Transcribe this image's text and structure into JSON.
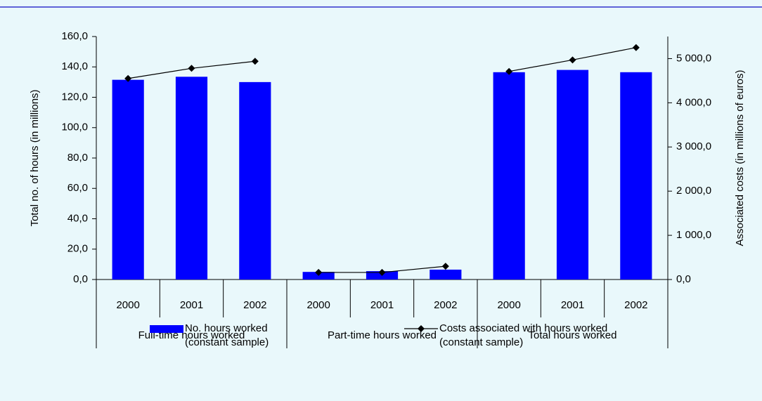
{
  "chart_data": {
    "type": "bar_line",
    "groups": [
      {
        "name": "Full-time hours worked",
        "categories": [
          "2000",
          "2001",
          "2002"
        ]
      },
      {
        "name": "Part-time hours worked",
        "categories": [
          "2000",
          "2001",
          "2002"
        ]
      },
      {
        "name": "Total hours worked",
        "categories": [
          "2000",
          "2001",
          "2002"
        ]
      }
    ],
    "series": [
      {
        "name": "No. hours worked (constant sample)",
        "color": "#0000ff",
        "type": "bar",
        "values": [
          131.5,
          133.5,
          130,
          5,
          5.5,
          6.5,
          136.5,
          138,
          136.5
        ]
      },
      {
        "name": "Costs associated with hours worked (constant sample)",
        "color": "#000000",
        "type": "line",
        "axis": "y2",
        "values": [
          4550,
          4780,
          4940,
          160,
          160,
          300,
          4710,
          4970,
          5250
        ]
      }
    ],
    "ylabel": "Total no. of hours (in millions)",
    "y2label": "Associated costs (in millions of euros)",
    "ylim": [
      0,
      160
    ],
    "yticks": [
      {
        "value": 0,
        "label": "0,0"
      },
      {
        "value": 20,
        "label": "20,0"
      },
      {
        "value": 40,
        "label": "40,0"
      },
      {
        "value": 60,
        "label": "60,0"
      },
      {
        "value": 80,
        "label": "80,0"
      },
      {
        "value": 100,
        "label": "100,0"
      },
      {
        "value": 120,
        "label": "120,0"
      },
      {
        "value": 140,
        "label": "140,0"
      },
      {
        "value": 160,
        "label": "160,0"
      }
    ],
    "y2lim": [
      0,
      5500
    ],
    "y2ticks": [
      {
        "value": 0,
        "label": "0,0"
      },
      {
        "value": 1000,
        "label": "1 000,0"
      },
      {
        "value": 2000,
        "label": "2 000,0"
      },
      {
        "value": 3000,
        "label": "3 000,0"
      },
      {
        "value": 4000,
        "label": "4 000,0"
      },
      {
        "value": 5000,
        "label": "5 000,0"
      }
    ]
  }
}
